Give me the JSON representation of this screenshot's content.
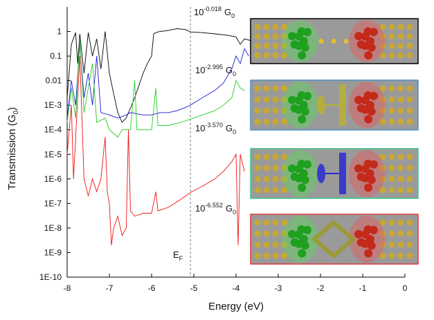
{
  "chart_data": {
    "type": "line",
    "x_label": "Energy (eV)",
    "y_label": {
      "text": "Transmission (G",
      "subscript": "0",
      "close": ")"
    },
    "log_y": true,
    "xlim": [
      -8,
      0
    ],
    "xticks": [
      -8,
      -7,
      -6,
      -5,
      -4,
      -3,
      -2,
      -1,
      0
    ],
    "ylim": [
      1e-10,
      10
    ],
    "yticks": [
      1,
      0.1,
      0.01,
      {
        "value": 0.001,
        "label": "1E-3"
      },
      {
        "value": 0.0001,
        "label": "1E-4"
      },
      {
        "value": 1e-05,
        "label": "1E-5"
      },
      {
        "value": 1e-06,
        "label": "1E-6"
      },
      {
        "value": 1e-07,
        "label": "1E-7"
      },
      {
        "value": 1e-08,
        "label": "1E-8"
      },
      {
        "value": 1e-09,
        "label": "1E-9"
      },
      {
        "value": 1e-10,
        "label": "1E-10"
      }
    ],
    "fermi_level": -5.08,
    "fermi_label": {
      "text": "E",
      "subscript": "F"
    },
    "annotations": [
      {
        "base": "10",
        "exponent": "-0.018",
        "unit": "G",
        "subscript": "0"
      },
      {
        "base": "10",
        "exponent": "-2.995",
        "unit": "G",
        "subscript": "0"
      },
      {
        "base": "10",
        "exponent": "-3.570",
        "unit": "G",
        "subscript": "0"
      },
      {
        "base": "10",
        "exponent": "-6.552",
        "unit": "G",
        "subscript": "0"
      }
    ],
    "series": [
      {
        "color": "#000000",
        "x": [
          -8,
          -7.9,
          -7.8,
          -7.75,
          -7.7,
          -7.6,
          -7.5,
          -7.4,
          -7.3,
          -7.2,
          -7.1,
          -7.0,
          -6.9,
          -6.8,
          -6.7,
          -6.6,
          -6.4,
          -6.2,
          -6.1,
          -6.0,
          -5.95,
          -5.9,
          -5.8,
          -5.6,
          -5.4,
          -5.2,
          -5.08,
          -4.8,
          -4.5,
          -4.2,
          -4.0,
          -3.9,
          -3.8,
          -3.6
        ],
        "values": [
          0.002,
          0.3,
          0.9,
          0.05,
          0.8,
          0.02,
          0.9,
          0.1,
          0.5,
          0.03,
          1,
          0.02,
          0.003,
          0.0005,
          0.0002,
          0.0003,
          0.002,
          0.02,
          0.05,
          0.1,
          0.8,
          0.9,
          1,
          1.1,
          1.3,
          1.2,
          0.96,
          0.9,
          0.8,
          0.7,
          0.6,
          0.3,
          0.5,
          0.4
        ]
      },
      {
        "color": "#1a1ad6",
        "x": [
          -8,
          -7.9,
          -7.8,
          -7.7,
          -7.6,
          -7.5,
          -7.4,
          -7.3,
          -7.2,
          -7.0,
          -6.8,
          -6.6,
          -6.5,
          -6.2,
          -6.0,
          -5.8,
          -5.6,
          -5.4,
          -5.2,
          -5.08,
          -4.8,
          -4.5,
          -4.3,
          -4.1,
          -4.0,
          -3.9,
          -3.8,
          -3.7
        ],
        "values": [
          0.0003,
          0.01,
          0.001,
          0.3,
          0.002,
          0.02,
          0.001,
          0.1,
          0.0005,
          0.0004,
          0.0003,
          0.0004,
          0.0005,
          0.0004,
          0.0004,
          0.0005,
          0.0005,
          0.0006,
          0.0008,
          0.001,
          0.002,
          0.004,
          0.008,
          0.03,
          0.1,
          0.05,
          0.2,
          0.1
        ]
      },
      {
        "color": "#22cc22",
        "x": [
          -8,
          -7.9,
          -7.8,
          -7.7,
          -7.6,
          -7.4,
          -7.3,
          -7.1,
          -7.0,
          -6.8,
          -6.7,
          -6.5,
          -6.4,
          -6.35,
          -6.0,
          -5.9,
          -5.85,
          -5.6,
          -5.3,
          -5.08,
          -4.8,
          -4.5,
          -4.3,
          -4.1,
          -4.0,
          -3.9,
          -3.8
        ],
        "values": [
          0.0002,
          0.005,
          0.0003,
          0.5,
          0.0005,
          0.05,
          0.0002,
          0.0003,
          0.0001,
          5e-05,
          0.0001,
          0.0001,
          0.01,
          0.0001,
          0.0001,
          0.005,
          0.00015,
          0.00015,
          0.0002,
          0.00027,
          0.0004,
          0.0006,
          0.001,
          0.002,
          0.01,
          0.005,
          0.004
        ]
      },
      {
        "color": "#ee1111",
        "x": [
          -8,
          -7.9,
          -7.85,
          -7.7,
          -7.6,
          -7.5,
          -7.4,
          -7.3,
          -7.2,
          -7.1,
          -7.05,
          -7.0,
          -6.95,
          -6.9,
          -6.8,
          -6.7,
          -6.6,
          -6.55,
          -6.5,
          -6.4,
          -6.2,
          -6.0,
          -5.9,
          -5.85,
          -5.6,
          -5.3,
          -5.08,
          -4.8,
          -4.5,
          -4.3,
          -4.1,
          -4.0,
          -3.95,
          -3.9,
          -3.8
        ],
        "values": [
          1e-05,
          0.001,
          1e-06,
          0.1,
          1e-06,
          2e-07,
          1e-06,
          3e-07,
          1e-06,
          5e-05,
          3e-07,
          1e-07,
          2e-09,
          1e-08,
          3e-08,
          5e-09,
          1e-08,
          0.0001,
          5e-08,
          3e-08,
          4e-08,
          4e-08,
          3e-07,
          5e-08,
          7e-08,
          1.5e-07,
          2.8e-07,
          5e-07,
          1e-06,
          2e-06,
          5e-06,
          1e-05,
          2e-09,
          1e-05,
          2e-06
        ]
      }
    ]
  }
}
